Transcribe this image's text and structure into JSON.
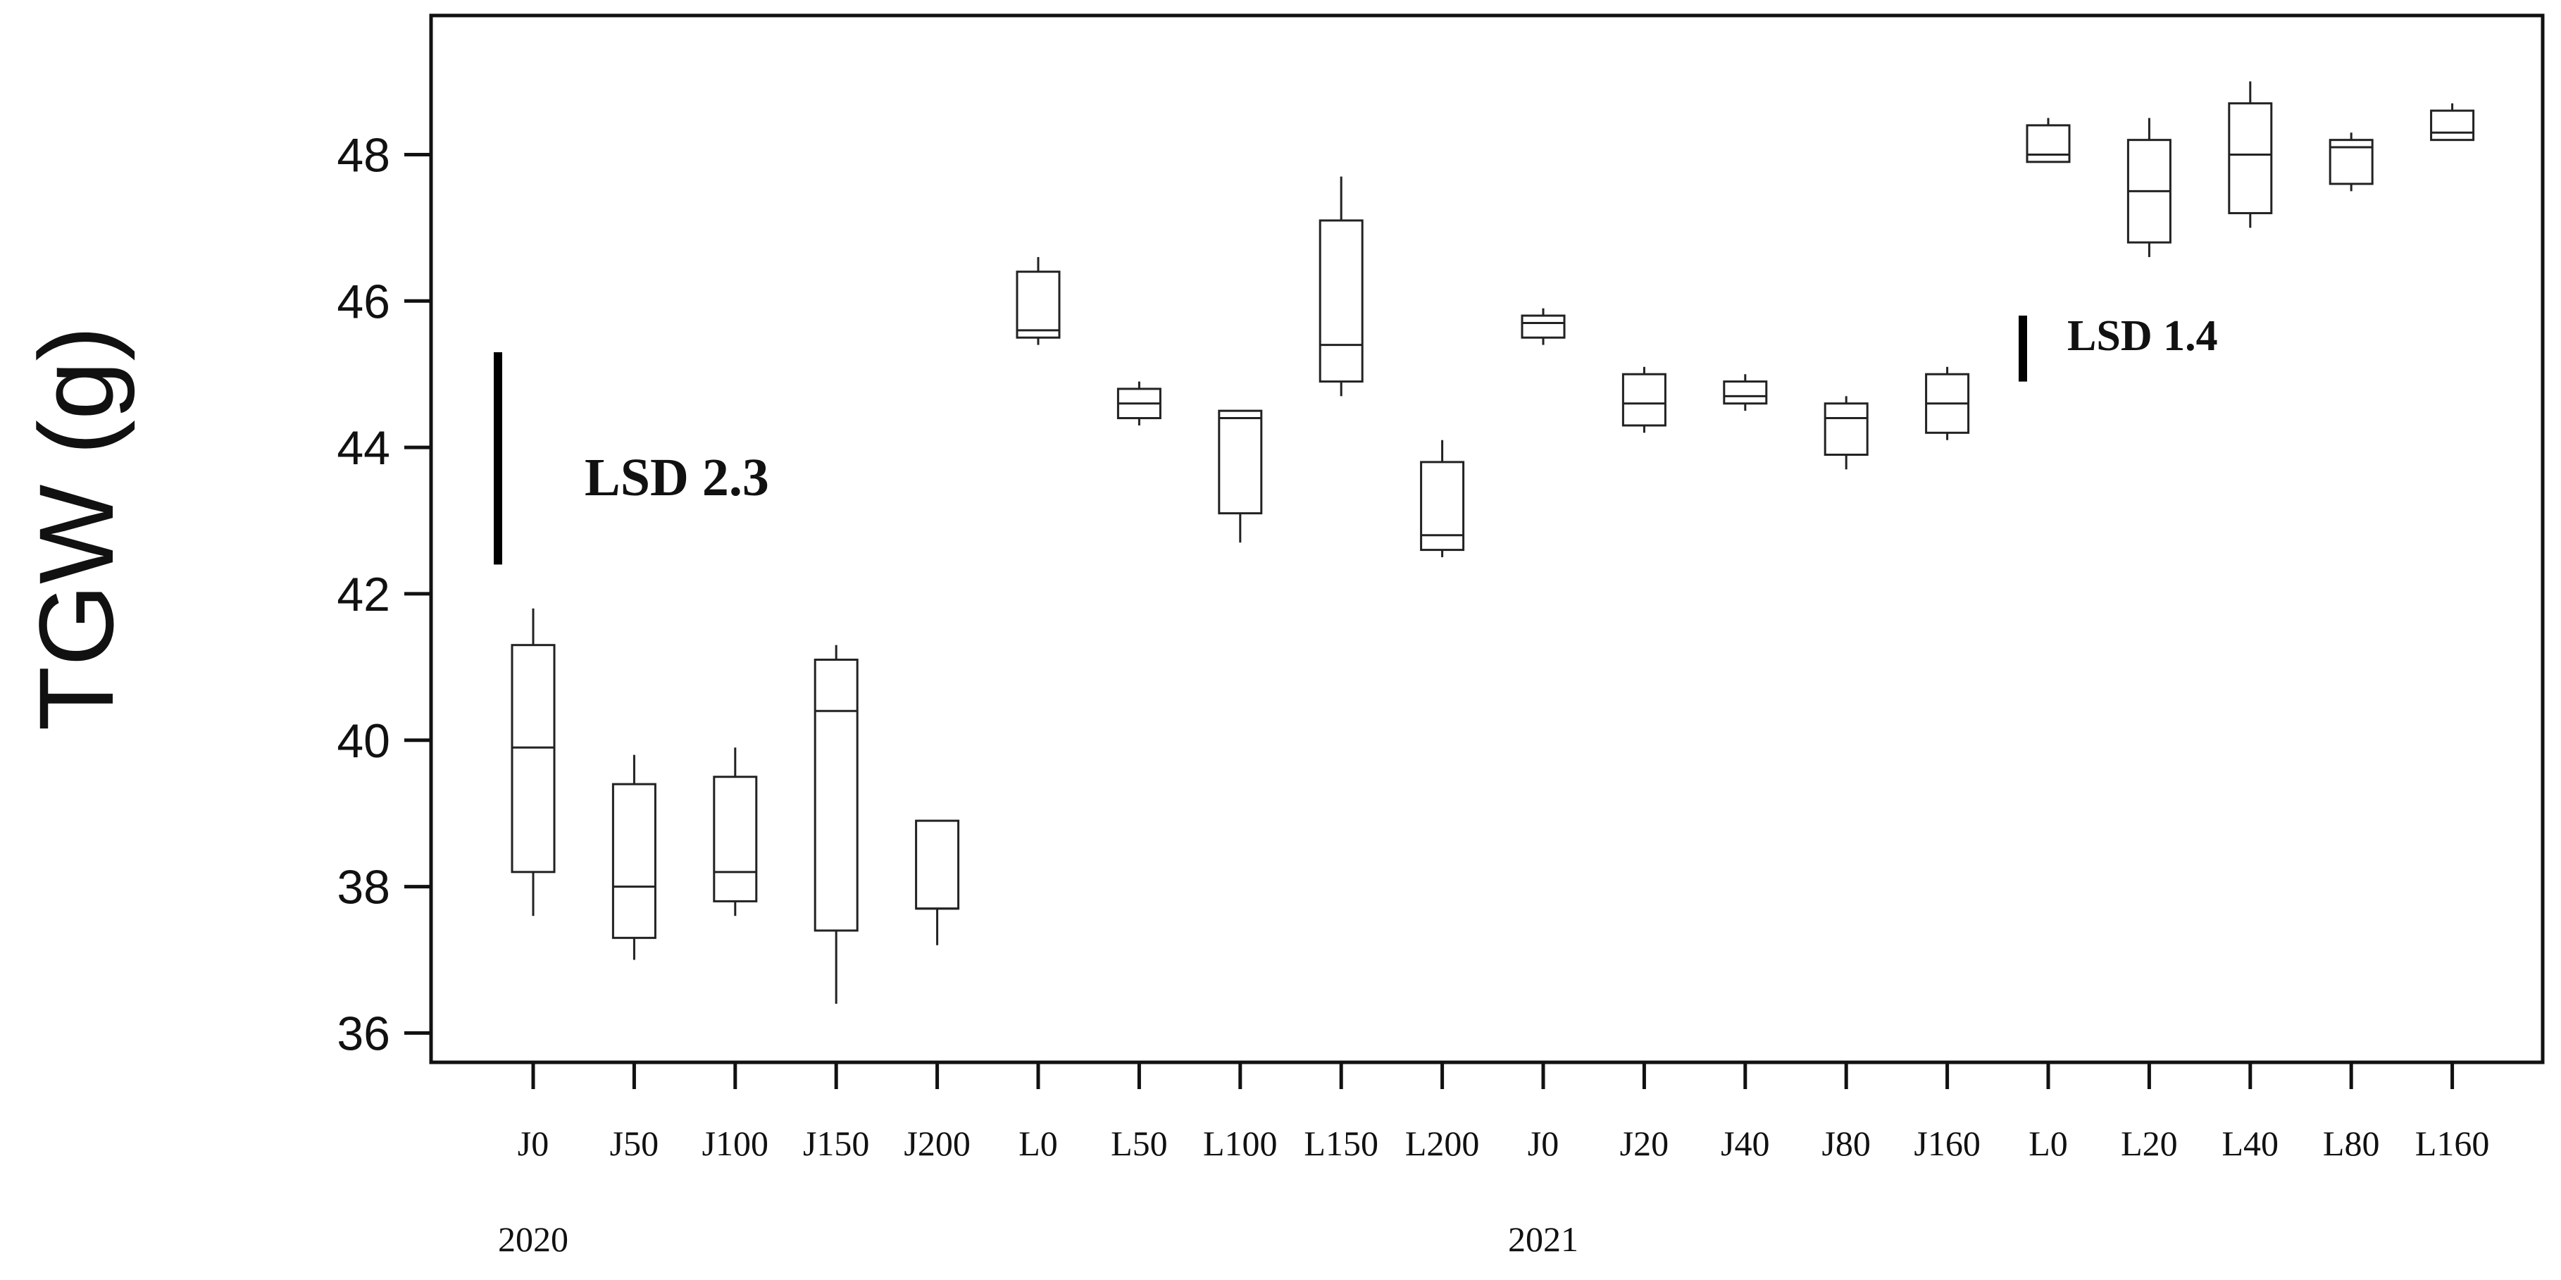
{
  "chart_data": {
    "type": "box",
    "ylabel": "TGW (g)",
    "xlabel": "",
    "ylim": [
      35.6,
      49.9
    ],
    "yticks": [
      "36",
      "38",
      "40",
      "42",
      "44",
      "46",
      "48"
    ],
    "ytick_values": [
      36,
      38,
      40,
      42,
      44,
      46,
      48
    ],
    "grid": false,
    "groups": [
      {
        "label": "2020",
        "first_index": 0
      },
      {
        "label": "2021",
        "first_index": 10
      }
    ],
    "boxes": [
      {
        "label": "J0",
        "min": 37.6,
        "q1": 38.2,
        "median": 39.9,
        "q3": 41.3,
        "max": 41.8
      },
      {
        "label": "J50",
        "min": 37.0,
        "q1": 37.3,
        "median": 38.0,
        "q3": 39.4,
        "max": 39.8
      },
      {
        "label": "J100",
        "min": 37.6,
        "q1": 37.8,
        "median": 38.2,
        "q3": 39.5,
        "max": 39.9
      },
      {
        "label": "J150",
        "min": 36.4,
        "q1": 37.4,
        "median": 40.4,
        "q3": 41.1,
        "max": 41.3
      },
      {
        "label": "J200",
        "min": 37.2,
        "q1": 37.7,
        "median": 37.7,
        "q3": 38.9,
        "max": 38.9
      },
      {
        "label": "L0",
        "min": 45.4,
        "q1": 45.5,
        "median": 45.6,
        "q3": 46.4,
        "max": 46.6
      },
      {
        "label": "L50",
        "min": 44.3,
        "q1": 44.4,
        "median": 44.6,
        "q3": 44.8,
        "max": 44.9
      },
      {
        "label": "L100",
        "min": 42.7,
        "q1": 43.1,
        "median": 44.4,
        "q3": 44.5,
        "max": 44.5
      },
      {
        "label": "L150",
        "min": 44.7,
        "q1": 44.9,
        "median": 45.4,
        "q3": 47.1,
        "max": 47.7
      },
      {
        "label": "L200",
        "min": 42.5,
        "q1": 42.6,
        "median": 42.8,
        "q3": 43.8,
        "max": 44.1
      },
      {
        "label": "J0",
        "min": 45.4,
        "q1": 45.5,
        "median": 45.7,
        "q3": 45.8,
        "max": 45.9
      },
      {
        "label": "J20",
        "min": 44.2,
        "q1": 44.3,
        "median": 44.6,
        "q3": 45.0,
        "max": 45.1
      },
      {
        "label": "J40",
        "min": 44.5,
        "q1": 44.6,
        "median": 44.7,
        "q3": 44.9,
        "max": 45.0
      },
      {
        "label": "J80",
        "min": 43.7,
        "q1": 43.9,
        "median": 44.4,
        "q3": 44.6,
        "max": 44.7
      },
      {
        "label": "J160",
        "min": 44.1,
        "q1": 44.2,
        "median": 44.6,
        "q3": 45.0,
        "max": 45.1
      },
      {
        "label": "L0",
        "min": 47.9,
        "q1": 47.9,
        "median": 48.0,
        "q3": 48.4,
        "max": 48.5
      },
      {
        "label": "L20",
        "min": 46.6,
        "q1": 46.8,
        "median": 47.5,
        "q3": 48.2,
        "max": 48.5
      },
      {
        "label": "L40",
        "min": 47.0,
        "q1": 47.2,
        "median": 48.0,
        "q3": 48.7,
        "max": 49.0
      },
      {
        "label": "L80",
        "min": 47.5,
        "q1": 47.6,
        "median": 48.1,
        "q3": 48.2,
        "max": 48.3
      },
      {
        "label": "L160",
        "min": 48.2,
        "q1": 48.2,
        "median": 48.3,
        "q3": 48.6,
        "max": 48.7
      }
    ],
    "annotations": [
      {
        "text": "LSD 2.3",
        "value": 2.3,
        "bar_from": 42.4,
        "bar_to": 45.3,
        "position": "upper-left"
      },
      {
        "text": "LSD 1.4",
        "value": 1.4,
        "bar_from": 44.9,
        "bar_to": 45.8,
        "position": "right"
      }
    ]
  }
}
